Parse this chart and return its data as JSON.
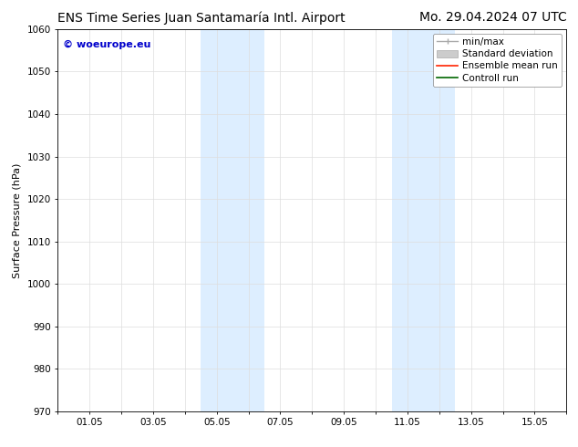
{
  "title_left": "ENS Time Series Juan Santamaría Intl. Airport",
  "title_right": "Mo. 29.04.2024 07 UTC",
  "ylabel": "Surface Pressure (hPa)",
  "ylim": [
    970,
    1060
  ],
  "yticks": [
    970,
    980,
    990,
    1000,
    1010,
    1020,
    1030,
    1040,
    1050,
    1060
  ],
  "xlim": [
    0,
    16
  ],
  "xtick_positions": [
    0,
    1,
    2,
    3,
    4,
    5,
    6,
    7,
    8,
    9,
    10,
    11,
    12,
    13,
    14,
    15,
    16
  ],
  "xtick_labels": [
    "",
    "01.05",
    "",
    "03.05",
    "",
    "05.05",
    "",
    "07.05",
    "",
    "09.05",
    "",
    "11.05",
    "",
    "13.05",
    "",
    "15.05",
    ""
  ],
  "shaded_bands": [
    {
      "xstart": 4.5,
      "xend": 6.5
    },
    {
      "xstart": 10.5,
      "xend": 12.5
    }
  ],
  "shade_color": "#ddeeff",
  "background_color": "#ffffff",
  "grid_color": "#dddddd",
  "watermark_text": "© woeurope.eu",
  "watermark_color": "#0000cc",
  "title_fontsize": 10,
  "axis_label_fontsize": 8,
  "tick_fontsize": 7.5,
  "watermark_fontsize": 8,
  "legend_fontsize": 7.5
}
